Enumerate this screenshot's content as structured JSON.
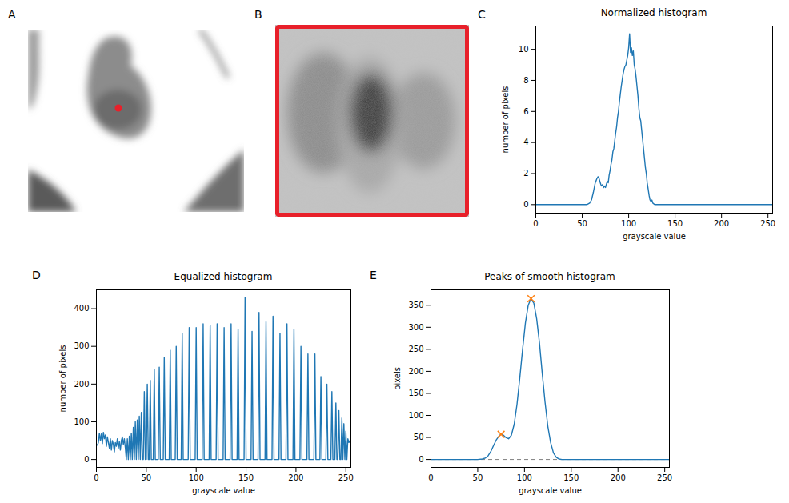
{
  "images": [
    {
      "panel": "A",
      "type": "image",
      "color": "#e8202a"
    },
    {
      "panel": "B",
      "type": "image",
      "color": "#e8202a"
    }
  ],
  "chart_data": [
    {
      "panel": "C",
      "type": "line",
      "title": "Normalized histogram",
      "x_label": "grayscale value",
      "y_label": "number of pixels",
      "color": "#1f77b4",
      "xlim": [
        0,
        255
      ],
      "ylim": [
        -0.55,
        11.5
      ],
      "xticks": [
        0,
        50,
        100,
        150,
        200,
        250
      ],
      "yticks": [
        0,
        2,
        4,
        6,
        8,
        10
      ],
      "x": [
        0,
        55,
        58,
        60,
        62,
        64,
        66,
        67,
        68,
        69,
        70,
        71,
        72,
        73,
        74,
        75,
        76,
        77,
        78,
        79,
        80,
        81,
        82,
        83,
        84,
        85,
        86,
        87,
        88,
        89,
        90,
        91,
        92,
        93,
        94,
        95,
        96,
        97,
        98,
        99,
        100,
        101,
        102,
        103,
        104,
        105,
        106,
        107,
        108,
        109,
        110,
        111,
        112,
        113,
        114,
        115,
        116,
        117,
        118,
        119,
        120,
        121,
        122,
        123,
        124,
        125,
        126,
        128,
        255
      ],
      "values": [
        0,
        0,
        0.1,
        0.3,
        0.8,
        1.4,
        1.7,
        1.8,
        1.7,
        1.5,
        1.3,
        1.2,
        1.3,
        1.1,
        1.2,
        1.1,
        1.3,
        1.5,
        1.4,
        1.9,
        2.2,
        2.6,
        2.9,
        3.4,
        3.6,
        4.1,
        4.6,
        5.0,
        5.6,
        6.0,
        6.6,
        7.1,
        7.6,
        8.0,
        8.4,
        8.7,
        8.9,
        9.0,
        9.3,
        9.6,
        10.1,
        11.0,
        9.8,
        10.1,
        9.6,
        9.9,
        9.0,
        8.7,
        8.2,
        7.6,
        7.0,
        6.2,
        5.6,
        5.4,
        4.8,
        4.2,
        3.6,
        3.0,
        2.4,
        2.0,
        1.4,
        1.0,
        0.6,
        0.3,
        0.2,
        0.3,
        0.1,
        0,
        0
      ]
    },
    {
      "panel": "D",
      "type": "line",
      "title": "Equalized histogram",
      "x_label": "grayscale value",
      "y_label": "number of pixels",
      "color": "#1f77b4",
      "xlim": [
        0,
        255
      ],
      "ylim": [
        -21,
        450
      ],
      "xticks": [
        0,
        50,
        100,
        150,
        200,
        250
      ],
      "yticks": [
        0,
        100,
        200,
        300,
        400
      ],
      "x": [
        0,
        1,
        2,
        3,
        4,
        5,
        6,
        7,
        8,
        9,
        10,
        11,
        12,
        13,
        14,
        15,
        16,
        17,
        18,
        19,
        20,
        21,
        22,
        23,
        24,
        25,
        26,
        27,
        28,
        29,
        30,
        31,
        32,
        33,
        34,
        35,
        36,
        37,
        38,
        39,
        40,
        41,
        42,
        43,
        44,
        45,
        46,
        47,
        48,
        49,
        50,
        51,
        52,
        53,
        54,
        55,
        57,
        58,
        59,
        62,
        63,
        64,
        67,
        68,
        69,
        73,
        74,
        75,
        79,
        80,
        81,
        85,
        86,
        87,
        92,
        93,
        94,
        99,
        100,
        101,
        106,
        107,
        108,
        113,
        114,
        115,
        120,
        121,
        122,
        127,
        128,
        129,
        134,
        135,
        136,
        141,
        142,
        143,
        148,
        149,
        150,
        155,
        156,
        157,
        162,
        163,
        164,
        169,
        170,
        171,
        176,
        177,
        178,
        183,
        184,
        185,
        190,
        191,
        192,
        197,
        198,
        199,
        204,
        205,
        206,
        211,
        212,
        213,
        218,
        219,
        220,
        224,
        225,
        226,
        230,
        231,
        232,
        235,
        236,
        237,
        239,
        240,
        241,
        242,
        243,
        244,
        245,
        246,
        247,
        248,
        249,
        250,
        251,
        252,
        253,
        254,
        255
      ],
      "values": [
        40,
        38,
        45,
        70,
        50,
        68,
        42,
        72,
        55,
        65,
        35,
        60,
        45,
        30,
        55,
        25,
        50,
        40,
        20,
        45,
        35,
        55,
        30,
        48,
        25,
        50,
        60,
        40,
        55,
        30,
        0,
        55,
        0,
        62,
        0,
        70,
        0,
        85,
        0,
        100,
        0,
        105,
        0,
        115,
        0,
        125,
        0,
        0,
        180,
        0,
        0,
        200,
        0,
        0,
        210,
        0,
        0,
        240,
        0,
        0,
        245,
        0,
        0,
        270,
        0,
        0,
        290,
        0,
        0,
        300,
        0,
        0,
        335,
        0,
        0,
        350,
        0,
        0,
        350,
        0,
        0,
        360,
        0,
        0,
        355,
        0,
        0,
        360,
        0,
        0,
        350,
        0,
        0,
        360,
        0,
        0,
        345,
        0,
        0,
        430,
        0,
        0,
        340,
        0,
        0,
        390,
        0,
        0,
        365,
        0,
        0,
        380,
        0,
        0,
        335,
        0,
        0,
        360,
        0,
        0,
        345,
        0,
        0,
        300,
        0,
        0,
        280,
        0,
        0,
        280,
        0,
        0,
        220,
        0,
        0,
        200,
        0,
        0,
        180,
        0,
        0,
        150,
        0,
        0,
        130,
        0,
        0,
        110,
        0,
        95,
        0,
        75,
        0,
        55,
        45,
        50,
        40
      ]
    },
    {
      "panel": "E",
      "type": "line",
      "title": "Peaks of smooth histogram",
      "x_label": "grayscale value",
      "y_label": "pixels",
      "color": "#1f77b4",
      "xlim": [
        0,
        255
      ],
      "ylim": [
        -18,
        385
      ],
      "xticks": [
        0,
        50,
        100,
        150,
        200,
        250
      ],
      "yticks": [
        0,
        50,
        100,
        150,
        200,
        250,
        300,
        350
      ],
      "x": [
        0,
        50,
        55,
        58,
        61,
        64,
        67,
        70,
        73,
        75,
        77,
        80,
        83,
        86,
        89,
        92,
        95,
        98,
        101,
        104,
        107,
        110,
        113,
        116,
        119,
        122,
        125,
        128,
        131,
        134,
        137,
        140,
        255
      ],
      "values": [
        0,
        0,
        1,
        3,
        8,
        18,
        32,
        45,
        54,
        57,
        56,
        50,
        47,
        55,
        80,
        125,
        185,
        250,
        310,
        350,
        365,
        355,
        320,
        265,
        195,
        130,
        75,
        38,
        15,
        5,
        1,
        0,
        0
      ],
      "peaks": {
        "x": [
          75,
          107
        ],
        "values": [
          57,
          365
        ],
        "marker": "x",
        "color": "#ff7f0e"
      },
      "baseline": {
        "value": 0,
        "line_style": "dashed",
        "color": "#808080"
      }
    }
  ]
}
